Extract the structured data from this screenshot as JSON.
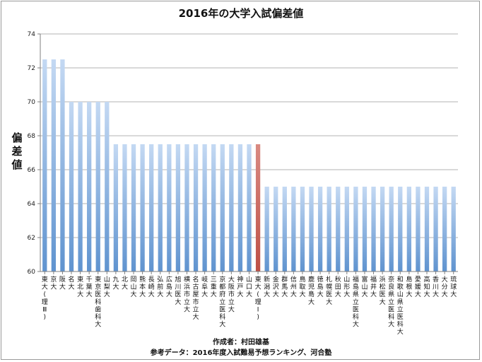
{
  "chart_data": {
    "type": "bar",
    "title": "2016年の大学入試偏差値",
    "ylabel": "偏差値",
    "xlabel": "",
    "ylim": [
      60,
      74
    ],
    "yticks": [
      60,
      62,
      64,
      66,
      68,
      70,
      72,
      74
    ],
    "grid": true,
    "categories": [
      "東大(理Ⅲ)",
      "京大",
      "阪大",
      "名大",
      "東北大",
      "千葉大",
      "東京医科歯科大",
      "山梨大",
      "九大",
      "北大",
      "岡山大",
      "熊本大",
      "長崎大",
      "弘前大",
      "広島大",
      "旭川医大",
      "横浜市立大",
      "名古屋市立大",
      "岐阜大",
      "三重大",
      "京都府立医科大",
      "大阪市立大",
      "神戸大",
      "山口大",
      "東大(理Ⅰ)",
      "新潟大",
      "金沢大",
      "群馬大",
      "信州大",
      "鳥取大",
      "鹿児島大",
      "徳島大",
      "札幌医大",
      "秋田大",
      "山形大",
      "福島県立医科大",
      "富山大",
      "福井大",
      "浜松医大",
      "奈良県立医科大",
      "和歌山県立医科大",
      "島根大",
      "愛媛大",
      "高知大",
      "香川大",
      "大分大",
      "琉球大"
    ],
    "values": [
      72.5,
      72.5,
      72.5,
      70,
      70,
      70,
      70,
      70,
      67.5,
      67.5,
      67.5,
      67.5,
      67.5,
      67.5,
      67.5,
      67.5,
      67.5,
      67.5,
      67.5,
      67.5,
      67.5,
      67.5,
      67.5,
      67.5,
      67.5,
      65,
      65,
      65,
      65,
      65,
      65,
      65,
      65,
      65,
      65,
      65,
      65,
      65,
      65,
      65,
      65,
      65,
      65,
      65,
      65,
      65,
      65
    ],
    "highlight_index": 24,
    "colors": {
      "bar_top": "#c4d9f3",
      "bar_bottom": "#5f93cf",
      "highlight_top": "#d98a82",
      "highlight_bottom": "#bd4f45",
      "grid": "#9a9a9a",
      "axis": "#7f7f7f"
    }
  },
  "footer": {
    "author": "作成者：村田雄基",
    "source": "参考データ：2016年度入試難易予想ランキング、河合塾"
  }
}
